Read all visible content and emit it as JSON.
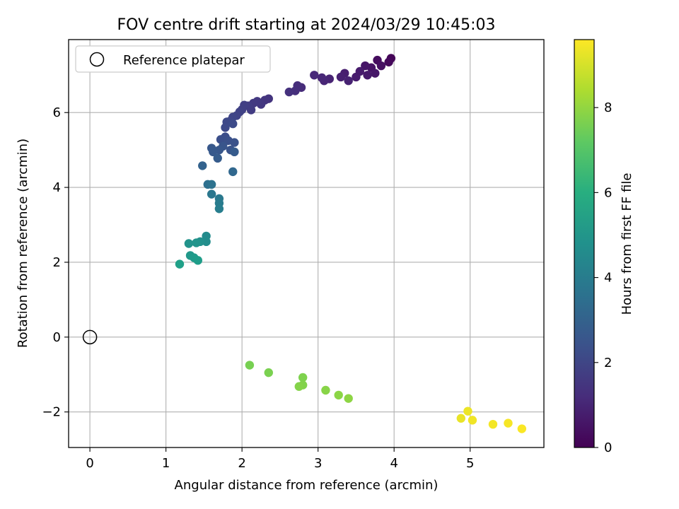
{
  "chart_data": {
    "type": "scatter",
    "title": "FOV centre drift starting at 2024/03/29 10:45:03",
    "xlabel": "Angular distance from reference (arcmin)",
    "ylabel": "Rotation from reference (arcmin)",
    "xlim": [
      -0.28,
      5.97
    ],
    "ylim": [
      -2.95,
      7.95
    ],
    "xticks": [
      0,
      1,
      2,
      3,
      4,
      5
    ],
    "yticks": [
      -2,
      0,
      2,
      4,
      6
    ],
    "xtick_labels": [
      "0",
      "1",
      "2",
      "3",
      "4",
      "5"
    ],
    "ytick_labels": [
      "−2",
      "0",
      "2",
      "4",
      "6"
    ],
    "grid": true,
    "legend": {
      "placement": "upper-left",
      "entries": [
        "Reference platepar"
      ]
    },
    "reference_point": {
      "x": 0,
      "y": 0
    },
    "colorbar": {
      "label": "Hours from first FF file",
      "range": [
        0,
        9.6
      ],
      "ticks": [
        0,
        2,
        4,
        6,
        8
      ],
      "tick_labels": [
        "0",
        "2",
        "4",
        "6",
        "8"
      ],
      "colormap": "viridis"
    },
    "points": [
      {
        "x": 3.96,
        "y": 7.45,
        "c": 0.1
      },
      {
        "x": 3.93,
        "y": 7.35,
        "c": 0.2
      },
      {
        "x": 3.78,
        "y": 7.4,
        "c": 0.3
      },
      {
        "x": 3.83,
        "y": 7.25,
        "c": 0.4
      },
      {
        "x": 3.7,
        "y": 7.2,
        "c": 0.5
      },
      {
        "x": 3.62,
        "y": 7.25,
        "c": 0.55
      },
      {
        "x": 3.75,
        "y": 7.05,
        "c": 0.6
      },
      {
        "x": 3.65,
        "y": 7.0,
        "c": 0.65
      },
      {
        "x": 3.55,
        "y": 7.1,
        "c": 0.7
      },
      {
        "x": 3.5,
        "y": 6.95,
        "c": 0.75
      },
      {
        "x": 3.35,
        "y": 7.05,
        "c": 0.8
      },
      {
        "x": 3.3,
        "y": 6.95,
        "c": 0.85
      },
      {
        "x": 3.4,
        "y": 6.85,
        "c": 0.9
      },
      {
        "x": 3.15,
        "y": 6.9,
        "c": 0.95
      },
      {
        "x": 3.08,
        "y": 6.85,
        "c": 1.0
      },
      {
        "x": 3.05,
        "y": 6.93,
        "c": 1.05
      },
      {
        "x": 2.95,
        "y": 7.0,
        "c": 1.1
      },
      {
        "x": 2.78,
        "y": 6.67,
        "c": 1.2
      },
      {
        "x": 2.73,
        "y": 6.72,
        "c": 1.25
      },
      {
        "x": 2.7,
        "y": 6.58,
        "c": 1.3
      },
      {
        "x": 2.62,
        "y": 6.55,
        "c": 1.35
      },
      {
        "x": 2.35,
        "y": 6.37,
        "c": 1.45
      },
      {
        "x": 2.3,
        "y": 6.33,
        "c": 1.5
      },
      {
        "x": 2.25,
        "y": 6.22,
        "c": 1.55
      },
      {
        "x": 2.2,
        "y": 6.3,
        "c": 1.6
      },
      {
        "x": 2.15,
        "y": 6.25,
        "c": 1.65
      },
      {
        "x": 2.12,
        "y": 6.07,
        "c": 1.7
      },
      {
        "x": 2.08,
        "y": 6.18,
        "c": 1.75
      },
      {
        "x": 2.03,
        "y": 6.2,
        "c": 1.8
      },
      {
        "x": 2.0,
        "y": 6.08,
        "c": 1.85
      },
      {
        "x": 1.97,
        "y": 6.02,
        "c": 1.9
      },
      {
        "x": 1.93,
        "y": 5.92,
        "c": 1.95
      },
      {
        "x": 1.88,
        "y": 5.88,
        "c": 2.0
      },
      {
        "x": 1.85,
        "y": 5.78,
        "c": 2.05
      },
      {
        "x": 1.8,
        "y": 5.75,
        "c": 2.1
      },
      {
        "x": 1.78,
        "y": 5.6,
        "c": 2.15
      },
      {
        "x": 1.88,
        "y": 5.7,
        "c": 2.2
      },
      {
        "x": 1.78,
        "y": 5.35,
        "c": 2.3
      },
      {
        "x": 1.72,
        "y": 5.28,
        "c": 2.35
      },
      {
        "x": 1.82,
        "y": 5.25,
        "c": 2.4
      },
      {
        "x": 1.9,
        "y": 5.2,
        "c": 2.45
      },
      {
        "x": 1.85,
        "y": 5.0,
        "c": 2.5
      },
      {
        "x": 1.75,
        "y": 5.1,
        "c": 2.55
      },
      {
        "x": 1.7,
        "y": 5.0,
        "c": 2.6
      },
      {
        "x": 1.6,
        "y": 5.05,
        "c": 2.65
      },
      {
        "x": 1.62,
        "y": 4.95,
        "c": 2.7
      },
      {
        "x": 1.9,
        "y": 4.95,
        "c": 2.75
      },
      {
        "x": 1.68,
        "y": 4.78,
        "c": 2.8
      },
      {
        "x": 1.48,
        "y": 4.58,
        "c": 3.0
      },
      {
        "x": 1.88,
        "y": 4.42,
        "c": 3.2
      },
      {
        "x": 1.55,
        "y": 4.08,
        "c": 3.5
      },
      {
        "x": 1.6,
        "y": 4.08,
        "c": 3.6
      },
      {
        "x": 1.6,
        "y": 3.82,
        "c": 3.8
      },
      {
        "x": 1.7,
        "y": 3.7,
        "c": 3.9
      },
      {
        "x": 1.7,
        "y": 3.58,
        "c": 4.0
      },
      {
        "x": 1.7,
        "y": 3.43,
        "c": 4.1
      },
      {
        "x": 1.53,
        "y": 2.7,
        "c": 4.6
      },
      {
        "x": 1.53,
        "y": 2.55,
        "c": 4.7
      },
      {
        "x": 1.45,
        "y": 2.55,
        "c": 4.8
      },
      {
        "x": 1.3,
        "y": 2.5,
        "c": 4.9
      },
      {
        "x": 1.4,
        "y": 2.52,
        "c": 4.95
      },
      {
        "x": 1.32,
        "y": 2.18,
        "c": 5.1
      },
      {
        "x": 1.37,
        "y": 2.12,
        "c": 5.2
      },
      {
        "x": 1.42,
        "y": 2.05,
        "c": 5.3
      },
      {
        "x": 1.18,
        "y": 1.95,
        "c": 5.4
      },
      {
        "x": 2.1,
        "y": -0.75,
        "c": 7.6
      },
      {
        "x": 2.35,
        "y": -0.95,
        "c": 7.65
      },
      {
        "x": 2.8,
        "y": -1.08,
        "c": 7.7
      },
      {
        "x": 2.8,
        "y": -1.28,
        "c": 7.75
      },
      {
        "x": 2.75,
        "y": -1.32,
        "c": 7.8
      },
      {
        "x": 3.1,
        "y": -1.42,
        "c": 7.85
      },
      {
        "x": 3.27,
        "y": -1.55,
        "c": 7.9
      },
      {
        "x": 3.4,
        "y": -1.64,
        "c": 7.95
      },
      {
        "x": 4.88,
        "y": -2.17,
        "c": 9.3
      },
      {
        "x": 4.97,
        "y": -1.98,
        "c": 9.35
      },
      {
        "x": 5.03,
        "y": -2.22,
        "c": 9.4
      },
      {
        "x": 5.3,
        "y": -2.33,
        "c": 9.45
      },
      {
        "x": 5.5,
        "y": -2.3,
        "c": 9.5
      },
      {
        "x": 5.68,
        "y": -2.45,
        "c": 9.55
      }
    ]
  }
}
